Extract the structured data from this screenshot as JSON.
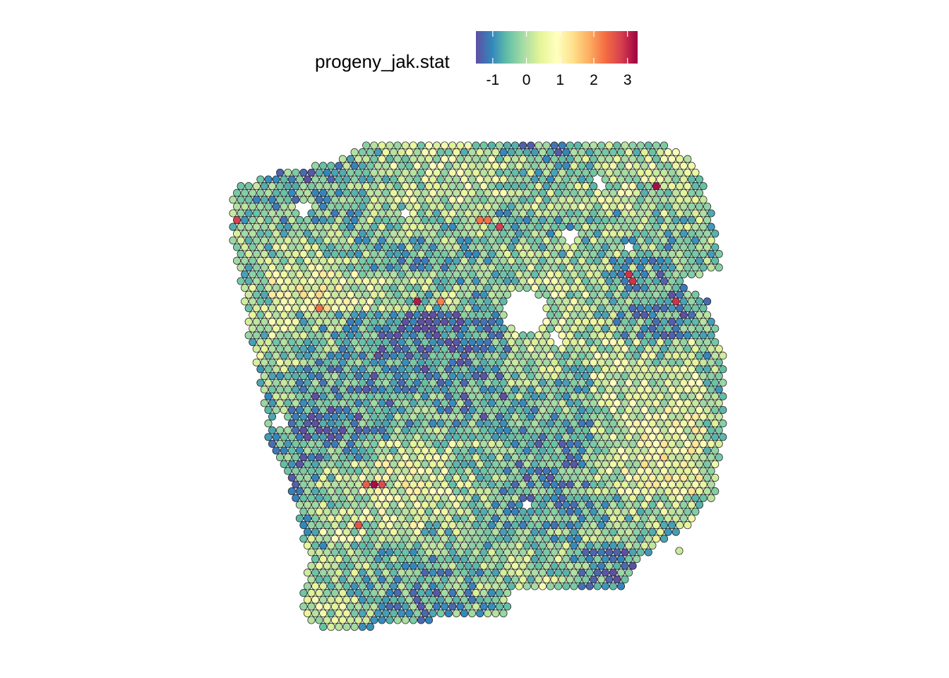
{
  "chart_data": {
    "type": "heatmap",
    "subtype": "spatial-spot-map",
    "legend": {
      "title": "progeny_jak.stat",
      "placement": "top",
      "colormap": [
        "#5E4FA2",
        "#3288BD",
        "#66C2A5",
        "#ABDDA4",
        "#E6F598",
        "#FFFFBF",
        "#FEE08B",
        "#FDAE61",
        "#F46D43",
        "#D53E4F",
        "#9E0142"
      ],
      "range": [
        -1.5,
        3.3
      ],
      "ticks": [
        -1,
        0,
        1,
        2,
        3
      ],
      "tick_labels": [
        "-1",
        "0",
        "1",
        "2",
        "3"
      ]
    },
    "value_summary": {
      "typical_range": [
        -1.2,
        1.0
      ],
      "max_value": 3.2,
      "min_value": -1.5
    },
    "spot_outline_color": "#1a1a1a",
    "grid": false,
    "axes": false
  }
}
